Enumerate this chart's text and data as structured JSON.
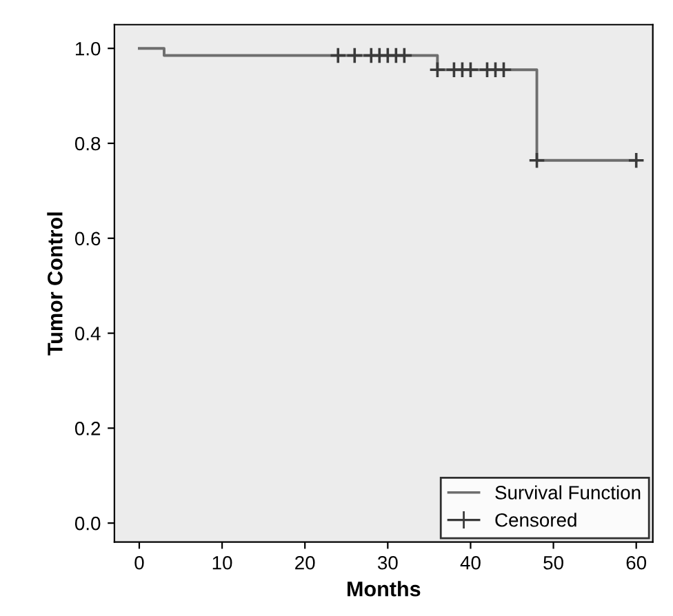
{
  "chart_data": {
    "type": "step",
    "xlabel": "Months",
    "ylabel": "Tumor Control",
    "xlim": [
      -3,
      62
    ],
    "ylim": [
      -0.04,
      1.05
    ],
    "xticks": [
      0,
      10,
      20,
      30,
      40,
      50,
      60
    ],
    "yticks": [
      {
        "value": 0,
        "label": "0.0"
      },
      {
        "value": 0.2,
        "label": "0.2"
      },
      {
        "value": 0.4,
        "label": "0.4"
      },
      {
        "value": 0.6,
        "label": "0.6"
      },
      {
        "value": 0.8,
        "label": "0.8"
      },
      {
        "value": 1,
        "label": "1.0"
      }
    ],
    "grid": false,
    "legend": "bottom right",
    "series": [
      {
        "name": "Survival Function",
        "color": "#6e6e6e",
        "x": [
          0,
          3,
          36,
          48,
          60
        ],
        "values": [
          1.0,
          0.985,
          0.955,
          0.764,
          0.764
        ]
      },
      {
        "name": "Censored",
        "type": "scatter",
        "marker": "cross",
        "color": "#3a3a3a",
        "x": [
          24,
          26,
          28,
          29,
          30,
          31,
          32,
          36,
          38,
          39,
          40,
          42,
          43,
          44,
          48,
          60
        ],
        "values": [
          0.985,
          0.985,
          0.985,
          0.985,
          0.985,
          0.985,
          0.985,
          0.955,
          0.955,
          0.955,
          0.955,
          0.955,
          0.955,
          0.955,
          0.764,
          0.764
        ]
      }
    ]
  }
}
